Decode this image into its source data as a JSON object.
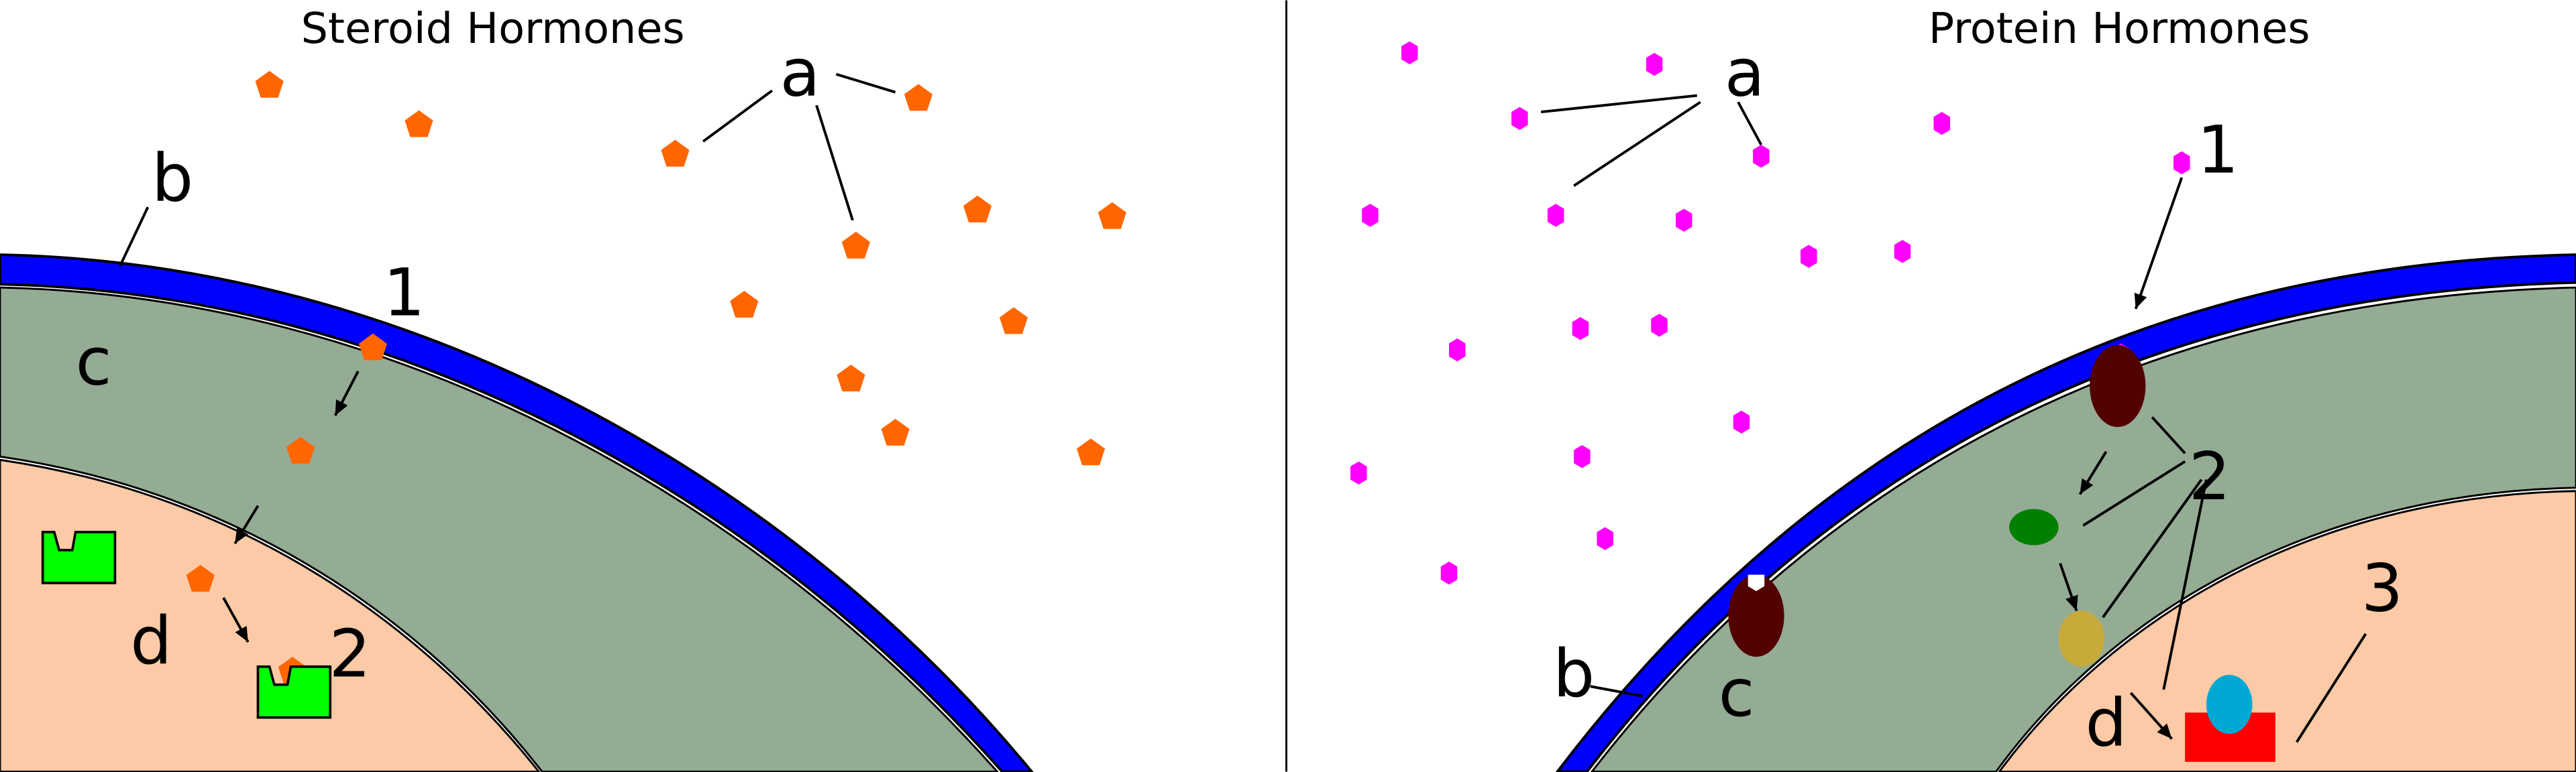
{
  "left_panel": {
    "title": "Steroid Hormones",
    "labels": {
      "a": "a",
      "b": "b",
      "c": "c",
      "d": "d",
      "step1": "1",
      "step2": "2"
    }
  },
  "right_panel": {
    "title": "Protein Hormones",
    "labels": {
      "a": "a",
      "b": "b",
      "c": "c",
      "d": "d",
      "step1": "1",
      "step2": "2",
      "step3": "3"
    }
  },
  "colors": {
    "membrane": "#0000ff",
    "cytoplasm": "#95ac94",
    "nucleus": "#fccaa6",
    "steroid_hormone": "#ff6600",
    "steroid_receptor": "#00ff00",
    "protein_hormone": "#ff00ff",
    "membrane_receptor": "#520000",
    "second_messenger": "#008000",
    "kinase": "#c8aa3a",
    "transcription_factor": "#00a8d4",
    "dna": "#ff0000"
  }
}
